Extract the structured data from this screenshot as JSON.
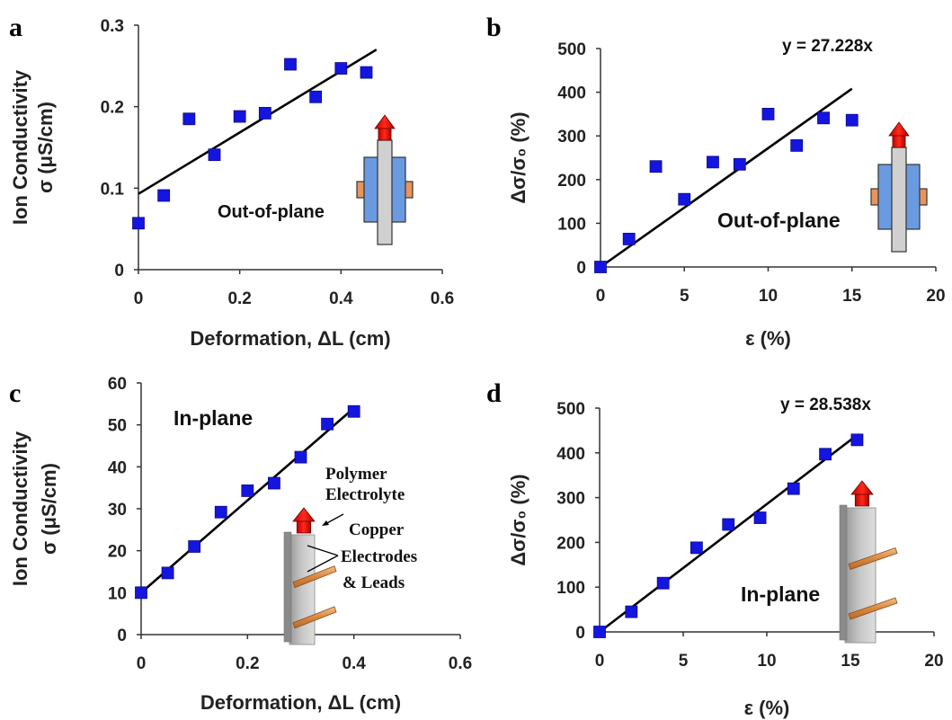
{
  "chart_data": [
    {
      "panel_label": "a",
      "type": "scatter",
      "xlabel": "Deformation, ΔL (cm)",
      "ylabel_lines": [
        "Ion Conductivity",
        "σ  (μS/cm)"
      ],
      "xlim": [
        0,
        0.6
      ],
      "ylim": [
        0,
        0.3
      ],
      "x_ticks": [
        "0",
        "0.2",
        "0.4",
        "0.6"
      ],
      "y_ticks": [
        "0",
        "0.1",
        "0.2",
        "0.3"
      ],
      "points": [
        {
          "x": 0,
          "y": 0.057
        },
        {
          "x": 0.05,
          "y": 0.091
        },
        {
          "x": 0.1,
          "y": 0.185
        },
        {
          "x": 0.15,
          "y": 0.141
        },
        {
          "x": 0.2,
          "y": 0.188
        },
        {
          "x": 0.25,
          "y": 0.192
        },
        {
          "x": 0.3,
          "y": 0.252
        },
        {
          "x": 0.35,
          "y": 0.212
        },
        {
          "x": 0.4,
          "y": 0.247
        },
        {
          "x": 0.45,
          "y": 0.242
        }
      ],
      "fit_line": {
        "x": [
          0,
          0.47
        ],
        "y": [
          0.093,
          0.27
        ]
      },
      "annotations": [
        "Out-of-plane"
      ],
      "inset": "out-of-plane",
      "grid": false,
      "marker_color": "#1515e0"
    },
    {
      "panel_label": "b",
      "type": "scatter",
      "xlabel": "ε (%)",
      "ylabel": "Δσ/σ₀ (%)",
      "xlim": [
        0,
        20
      ],
      "ylim": [
        0,
        500
      ],
      "x_ticks": [
        "0",
        "5",
        "10",
        "15",
        "20"
      ],
      "y_ticks": [
        "0",
        "100",
        "200",
        "300",
        "400",
        "500"
      ],
      "points": [
        {
          "x": 0,
          "y": 0
        },
        {
          "x": 1.7,
          "y": 64
        },
        {
          "x": 3.3,
          "y": 230
        },
        {
          "x": 5,
          "y": 155
        },
        {
          "x": 6.7,
          "y": 240
        },
        {
          "x": 8.3,
          "y": 235
        },
        {
          "x": 10,
          "y": 350
        },
        {
          "x": 11.7,
          "y": 278
        },
        {
          "x": 13.3,
          "y": 341
        },
        {
          "x": 15,
          "y": 336
        }
      ],
      "fit_line": {
        "x": [
          0,
          15
        ],
        "y": [
          0,
          408
        ]
      },
      "equation": "y = 27.228x",
      "annotations": [
        "Out-of-plane"
      ],
      "inset": "out-of-plane",
      "grid": false,
      "marker_color": "#1515e0"
    },
    {
      "panel_label": "c",
      "type": "scatter",
      "xlabel": "Deformation, ΔL (cm)",
      "ylabel_lines": [
        "Ion Conductivity",
        "σ (μS/cm)"
      ],
      "xlim": [
        0,
        0.6
      ],
      "ylim": [
        0,
        60
      ],
      "x_ticks": [
        "0",
        "0.2",
        "0.4",
        "0.6"
      ],
      "y_ticks": [
        "0",
        "10",
        "20",
        "30",
        "40",
        "50",
        "60"
      ],
      "points": [
        {
          "x": 0,
          "y": 10
        },
        {
          "x": 0.05,
          "y": 14.7
        },
        {
          "x": 0.1,
          "y": 21
        },
        {
          "x": 0.15,
          "y": 29.2
        },
        {
          "x": 0.2,
          "y": 34.3
        },
        {
          "x": 0.25,
          "y": 36.1
        },
        {
          "x": 0.3,
          "y": 42.3
        },
        {
          "x": 0.35,
          "y": 50.2
        },
        {
          "x": 0.4,
          "y": 53.2
        }
      ],
      "fit_line": {
        "x": [
          0,
          0.4
        ],
        "y": [
          10,
          54
        ]
      },
      "annotations": [
        "In-plane"
      ],
      "inset_labels": [
        "Polymer",
        "Electrolyte",
        "Copper",
        "Electrodes",
        "& Leads"
      ],
      "inset": "in-plane",
      "grid": false,
      "marker_color": "#1515e0"
    },
    {
      "panel_label": "d",
      "type": "scatter",
      "xlabel": "ε (%)",
      "ylabel": "Δσ/σ₀ (%)",
      "xlim": [
        0,
        20
      ],
      "ylim": [
        0,
        500
      ],
      "x_ticks": [
        "0",
        "5",
        "10",
        "15",
        "20"
      ],
      "y_ticks": [
        "0",
        "100",
        "200",
        "300",
        "400",
        "500"
      ],
      "points": [
        {
          "x": 0,
          "y": 0
        },
        {
          "x": 1.9,
          "y": 45
        },
        {
          "x": 3.8,
          "y": 109
        },
        {
          "x": 5.8,
          "y": 188
        },
        {
          "x": 7.7,
          "y": 240
        },
        {
          "x": 9.6,
          "y": 255
        },
        {
          "x": 11.6,
          "y": 320
        },
        {
          "x": 13.5,
          "y": 397
        },
        {
          "x": 15.4,
          "y": 429
        }
      ],
      "fit_line": {
        "x": [
          0,
          15.3
        ],
        "y": [
          0,
          437
        ]
      },
      "equation": "y = 28.538x",
      "annotations": [
        "In-plane"
      ],
      "inset": "in-plane",
      "grid": false,
      "marker_color": "#1515e0"
    }
  ]
}
